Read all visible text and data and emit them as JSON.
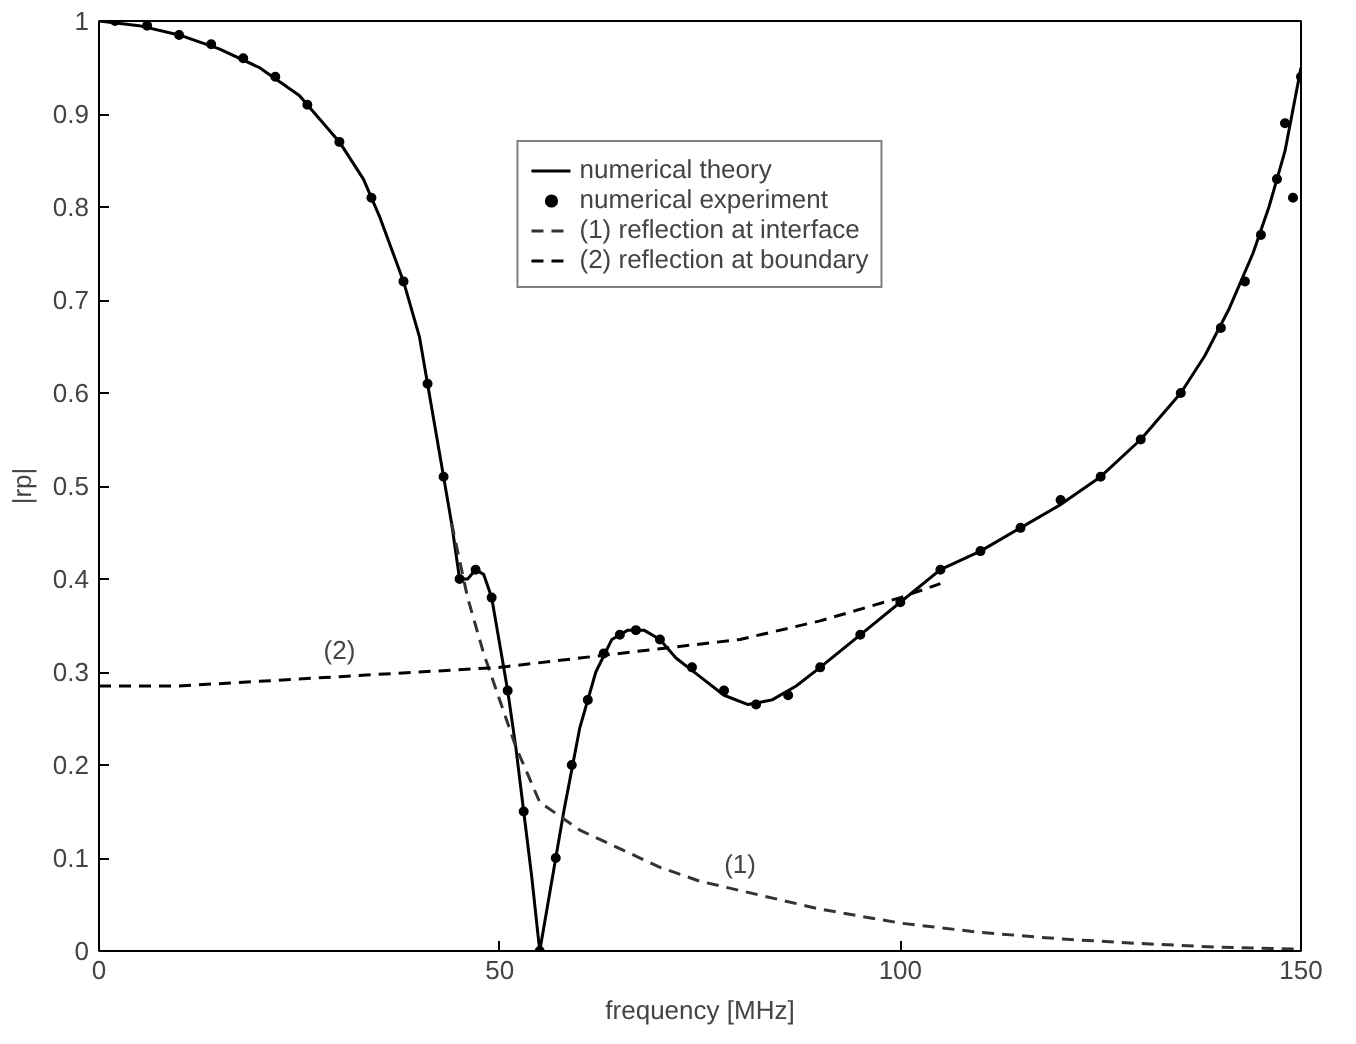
{
  "chart_data": {
    "type": "line",
    "xlabel": "frequency [MHz]",
    "ylabel": "|rp|",
    "xlim": [
      0,
      150
    ],
    "ylim": [
      0,
      1
    ],
    "xticks": [
      0,
      50,
      100,
      150
    ],
    "yticks": [
      0,
      0.1,
      0.2,
      0.3,
      0.4,
      0.5,
      0.6,
      0.7,
      0.8,
      0.9,
      1
    ],
    "grid": false,
    "legend": "top",
    "series": [
      {
        "name": "numerical theory",
        "color": "#000000",
        "line_style": "solid",
        "x": [
          0,
          5,
          10,
          15,
          20,
          25,
          30,
          33,
          35,
          38,
          40,
          42,
          44,
          45,
          46,
          47,
          48,
          49,
          50,
          51,
          52,
          53,
          54,
          55,
          56,
          57,
          58,
          60,
          62,
          64,
          66,
          68,
          70,
          72,
          75,
          78,
          81,
          84,
          87,
          90,
          95,
          100,
          105,
          110,
          115,
          120,
          125,
          130,
          135,
          138,
          141,
          144,
          146,
          148,
          150
        ],
        "values": [
          1.0,
          0.995,
          0.985,
          0.97,
          0.95,
          0.92,
          0.87,
          0.83,
          0.79,
          0.72,
          0.66,
          0.56,
          0.46,
          0.4,
          0.4,
          0.41,
          0.405,
          0.38,
          0.33,
          0.28,
          0.22,
          0.15,
          0.08,
          0.0,
          0.05,
          0.1,
          0.15,
          0.24,
          0.3,
          0.335,
          0.345,
          0.345,
          0.335,
          0.315,
          0.295,
          0.275,
          0.265,
          0.27,
          0.285,
          0.305,
          0.34,
          0.375,
          0.41,
          0.43,
          0.455,
          0.48,
          0.51,
          0.55,
          0.6,
          0.64,
          0.69,
          0.75,
          0.8,
          0.86,
          0.95
        ]
      },
      {
        "name": "numerical experiment",
        "type": "scatter",
        "color": "#000000",
        "marker": "circle",
        "x": [
          2,
          6,
          10,
          14,
          18,
          22,
          26,
          30,
          34,
          38,
          41,
          43,
          45,
          47,
          49,
          51,
          53,
          55,
          57,
          59,
          61,
          63,
          65,
          67,
          70,
          74,
          78,
          82,
          86,
          90,
          95,
          100,
          105,
          110,
          115,
          120,
          125,
          130,
          135,
          140,
          143,
          145,
          147,
          148,
          149,
          150
        ],
        "values": [
          1.0,
          0.995,
          0.985,
          0.975,
          0.96,
          0.94,
          0.91,
          0.87,
          0.81,
          0.72,
          0.61,
          0.51,
          0.4,
          0.41,
          0.38,
          0.28,
          0.15,
          0.0,
          0.1,
          0.2,
          0.27,
          0.32,
          0.34,
          0.345,
          0.335,
          0.305,
          0.28,
          0.265,
          0.275,
          0.305,
          0.34,
          0.375,
          0.41,
          0.43,
          0.455,
          0.485,
          0.51,
          0.55,
          0.6,
          0.67,
          0.72,
          0.77,
          0.83,
          0.89,
          0.81,
          0.94
        ]
      },
      {
        "name": "(1) reflection at interface",
        "type": "line",
        "color": "#333333",
        "line_style": "dashed",
        "x": [
          44,
          46,
          48,
          50,
          52,
          55,
          60,
          65,
          70,
          75,
          80,
          90,
          100,
          110,
          120,
          130,
          140,
          150
        ],
        "values": [
          0.46,
          0.38,
          0.32,
          0.27,
          0.22,
          0.16,
          0.13,
          0.11,
          0.09,
          0.075,
          0.065,
          0.045,
          0.03,
          0.02,
          0.013,
          0.008,
          0.004,
          0.002
        ]
      },
      {
        "name": "(2) reflection at boundary",
        "color": "#000000",
        "line_style": "dashed",
        "x": [
          0,
          10,
          20,
          30,
          40,
          50,
          60,
          70,
          80,
          90,
          100,
          105
        ],
        "values": [
          0.285,
          0.285,
          0.29,
          0.295,
          0.3,
          0.305,
          0.315,
          0.325,
          0.335,
          0.355,
          0.38,
          0.395
        ]
      }
    ],
    "annotations": [
      {
        "text": "(2)",
        "x": 30,
        "y": 0.295
      },
      {
        "text": "(1)",
        "x": 80,
        "y": 0.065
      }
    ]
  }
}
